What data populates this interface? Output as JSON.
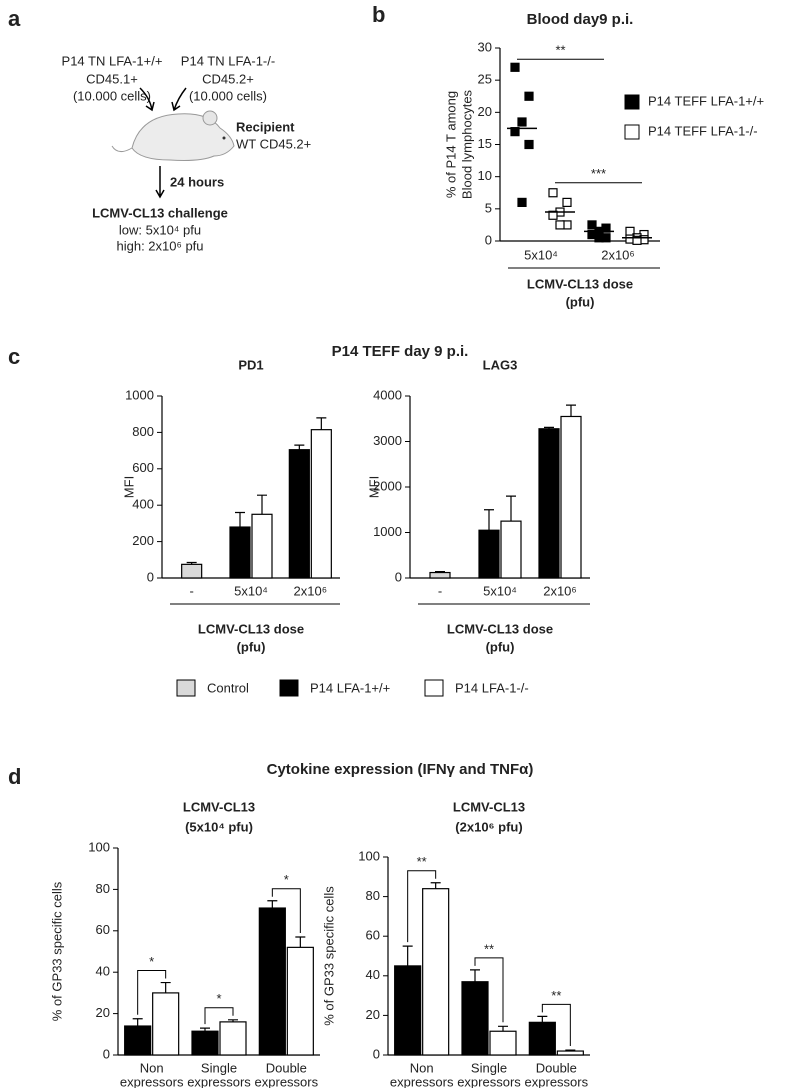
{
  "panel_labels": [
    "a",
    "b",
    "c",
    "d"
  ],
  "diagram": {
    "donor_left": [
      "P14 TN LFA-1+/+",
      "CD45.1+",
      "(10.000 cells)"
    ],
    "donor_right": [
      "P14 TN LFA-1-/-",
      "CD45.2+",
      "(10.000 cells)"
    ],
    "recipient": [
      "Recipient",
      "WT CD45.2+"
    ],
    "interval": "24 hours",
    "challenge": [
      "LCMV-CL13 challenge",
      "low: 5x10⁴ pfu",
      "high: 2x10⁶ pfu"
    ]
  },
  "panel_c_title": "P14 TEFF day 9 p.i.",
  "panel_c_legend": [
    "Control",
    "P14 LFA-1+/+",
    "P14 LFA-1-/-"
  ],
  "panel_d_title": "Cytokine expression (IFNγ and TNFα)",
  "chart_data": [
    {
      "type": "strip",
      "title": [
        "Blood day9 p.i."
      ],
      "y_label": [
        "% of P14 T among",
        "Blood lymphocytes"
      ],
      "x_label": [
        "LCMV-CL13 dose",
        "(pfu)"
      ],
      "categories": [
        [
          "5x10⁴"
        ],
        [
          "2x10⁶"
        ]
      ],
      "series": [
        {
          "name": "P14 TEFF LFA-1+/+",
          "color": "#000000",
          "values": [
            [
              27,
              22.5,
              18.5,
              17,
              15,
              6
            ],
            [
              2.5,
              2,
              1.5,
              1,
              0.5,
              0.5
            ]
          ],
          "medians": [
            17.5,
            1.5
          ]
        },
        {
          "name": "P14 TEFF LFA-1-/-",
          "color": "#ffffff",
          "values": [
            [
              7.5,
              6,
              4.5,
              4,
              2.5,
              2.5
            ],
            [
              1.5,
              1,
              0.5,
              0.3,
              0.2,
              0.1
            ]
          ],
          "medians": [
            4.5,
            0.5
          ]
        }
      ],
      "significance": [
        "**",
        "***"
      ],
      "category_rule": true,
      "legend": "right",
      "ylim": [
        0,
        30
      ],
      "yticks": [
        0,
        5,
        10,
        15,
        20,
        25,
        30
      ]
    },
    {
      "type": "bar",
      "title": [
        "PD1"
      ],
      "y_label": [
        "MFI"
      ],
      "x_label": [
        "LCMV-CL13 dose",
        "(pfu)"
      ],
      "categories": [
        [
          "-"
        ],
        [
          "5x10⁴"
        ],
        [
          "2x10⁶"
        ]
      ],
      "series": [
        {
          "color": "#d9d9d9",
          "values": [
            75,
            null,
            null
          ],
          "errors": [
            10,
            null,
            null
          ]
        },
        {
          "color": "#000000",
          "values": [
            null,
            280,
            705
          ],
          "errors": [
            null,
            80,
            25
          ]
        },
        {
          "color": "#ffffff",
          "values": [
            null,
            350,
            815
          ],
          "errors": [
            null,
            105,
            65
          ]
        }
      ],
      "category_rule": true,
      "ylim": [
        0,
        1000
      ],
      "yticks": [
        0,
        200,
        400,
        600,
        800,
        1000
      ]
    },
    {
      "type": "bar",
      "title": [
        "LAG3"
      ],
      "y_label": [
        "MFI"
      ],
      "x_label": [
        "LCMV-CL13 dose",
        "(pfu)"
      ],
      "categories": [
        [
          "-"
        ],
        [
          "5x10⁴"
        ],
        [
          "2x10⁶"
        ]
      ],
      "series": [
        {
          "color": "#d9d9d9",
          "values": [
            120,
            null,
            null
          ],
          "errors": [
            20,
            null,
            null
          ]
        },
        {
          "color": "#000000",
          "values": [
            null,
            1050,
            3280
          ],
          "errors": [
            null,
            450,
            30
          ]
        },
        {
          "color": "#ffffff",
          "values": [
            null,
            1250,
            3550
          ],
          "errors": [
            null,
            550,
            250
          ]
        }
      ],
      "category_rule": true,
      "ylim": [
        0,
        4000
      ],
      "yticks": [
        0,
        1000,
        2000,
        3000,
        4000
      ]
    },
    {
      "type": "bar",
      "title": [
        "LCMV-CL13",
        "(5x10⁴ pfu)"
      ],
      "y_label": [
        "% of GP33 specific cells"
      ],
      "categories": [
        [
          "Non",
          "expressors"
        ],
        [
          "Single",
          "expressors"
        ],
        [
          "Double",
          "expressors"
        ]
      ],
      "series": [
        {
          "color": "#000000",
          "values": [
            14,
            11.5,
            71
          ],
          "errors": [
            3.5,
            1.5,
            3.5
          ]
        },
        {
          "color": "#ffffff",
          "values": [
            30,
            16,
            52
          ],
          "errors": [
            5,
            1,
            5
          ]
        }
      ],
      "significance": [
        "*",
        "*",
        "*"
      ],
      "ylim": [
        0,
        100
      ],
      "yticks": [
        0,
        20,
        40,
        60,
        80,
        100
      ]
    },
    {
      "type": "bar",
      "title": [
        "LCMV-CL13",
        "(2x10⁶ pfu)"
      ],
      "y_label": [
        "% of GP33 specific cells"
      ],
      "categories": [
        [
          "Non",
          "expressors"
        ],
        [
          "Single",
          "expressors"
        ],
        [
          "Double",
          "expressors"
        ]
      ],
      "series": [
        {
          "color": "#000000",
          "values": [
            45,
            37,
            16.5
          ],
          "errors": [
            10,
            6,
            3
          ]
        },
        {
          "color": "#ffffff",
          "values": [
            84,
            12,
            2
          ],
          "errors": [
            3,
            2.5,
            0.5
          ]
        }
      ],
      "significance": [
        "**",
        "**",
        "**"
      ],
      "ylim": [
        0,
        100
      ],
      "yticks": [
        0,
        20,
        40,
        60,
        80,
        100
      ]
    }
  ]
}
